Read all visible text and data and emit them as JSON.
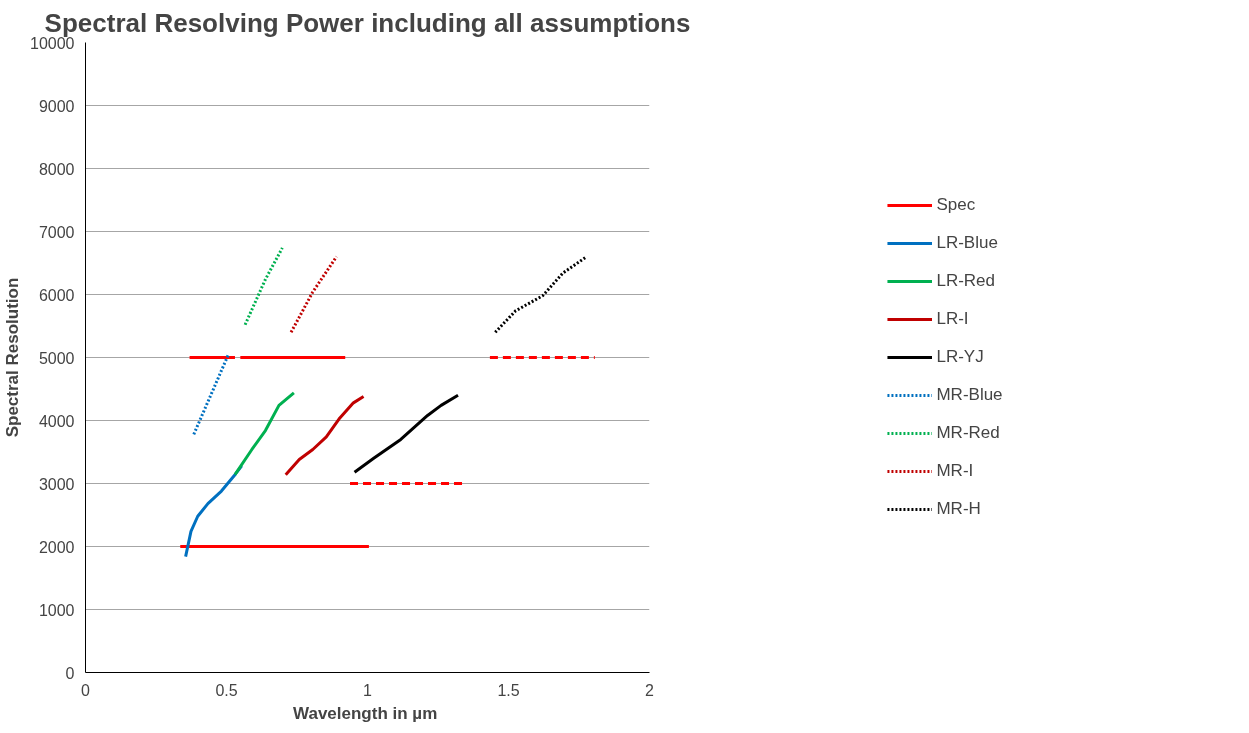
{
  "chart_data": {
    "type": "line",
    "title": "Spectral Resolving Power including all assumptions",
    "xlabel": "Wavelength in  µm",
    "ylabel": "Spectral Resolution",
    "xlim": [
      0,
      2
    ],
    "xticks": [
      0,
      0.5,
      1,
      1.5,
      2
    ],
    "ylim": [
      0,
      10000
    ],
    "yticks": [
      0,
      1000,
      2000,
      3000,
      4000,
      5000,
      6000,
      7000,
      8000,
      9000,
      10000
    ],
    "grid": "y",
    "legend": "right",
    "marker": "none",
    "series": [
      {
        "name": "Spec",
        "color": "#ff0000",
        "line_style": "solid",
        "x": [
          0.336,
          1.005,
          null,
          0.369,
          0.53,
          null,
          0.549,
          0.921
        ],
        "values": [
          2000,
          2000,
          null,
          5000,
          5000,
          null,
          5000,
          5000
        ]
      },
      {
        "color": "#ff0000",
        "line_style": "dashed",
        "x": [
          0.938,
          1.345,
          null,
          1.434,
          1.806
        ],
        "values": [
          3000,
          3000,
          null,
          5000,
          5000
        ]
      },
      {
        "name": "LR-Blue",
        "color": "#0070c0",
        "line_style": "solid",
        "x": [
          0.355,
          0.374,
          0.398,
          0.434,
          0.482,
          0.53,
          0.554
        ],
        "values": [
          1840,
          2240,
          2480,
          2680,
          2880,
          3140,
          3280
        ]
      },
      {
        "name": "LR-Red",
        "color": "#00b050",
        "line_style": "solid",
        "x": [
          0.53,
          0.59,
          0.638,
          0.686,
          0.739
        ],
        "values": [
          3140,
          3540,
          3840,
          4240,
          4440
        ]
      },
      {
        "name": "LR-I",
        "color": "#c00000",
        "line_style": "solid",
        "x": [
          0.71,
          0.758,
          0.806,
          0.854,
          0.902,
          0.95,
          0.986
        ],
        "values": [
          3140,
          3380,
          3540,
          3740,
          4040,
          4280,
          4380
        ]
      },
      {
        "name": "LR-YJ",
        "color": "#000000",
        "line_style": "solid",
        "x": [
          0.954,
          1.022,
          1.118,
          1.213,
          1.261,
          1.321
        ],
        "values": [
          3180,
          3400,
          3700,
          4080,
          4240,
          4400
        ]
      },
      {
        "name": "MR-Blue",
        "color": "#0070c0",
        "line_style": "dotted",
        "x": [
          0.384,
          0.506
        ],
        "values": [
          3780,
          5040
        ]
      },
      {
        "name": "MR-Red",
        "color": "#00b050",
        "line_style": "dotted",
        "x": [
          0.566,
          0.638,
          0.698
        ],
        "values": [
          5520,
          6240,
          6740
        ]
      },
      {
        "name": "MR-I",
        "color": "#c00000",
        "line_style": "dotted",
        "x": [
          0.729,
          0.806,
          0.89
        ],
        "values": [
          5400,
          6040,
          6600
        ]
      },
      {
        "name": "MR-H",
        "color": "#000000",
        "line_style": "dotted",
        "x": [
          1.453,
          1.525,
          1.621,
          1.693,
          1.777
        ],
        "values": [
          5400,
          5740,
          5980,
          6340,
          6600
        ]
      }
    ]
  }
}
